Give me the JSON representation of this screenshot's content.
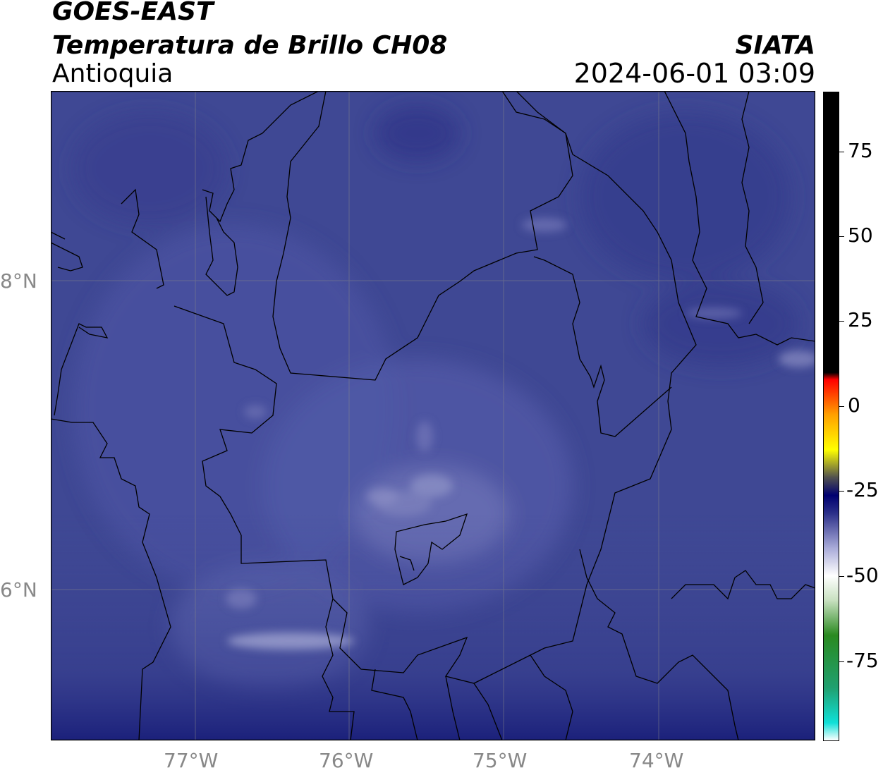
{
  "header": {
    "line1": "GOES-EAST",
    "line2": "Temperatura de Brillo CH08",
    "region": "Antioquia",
    "source": "SIATA",
    "datetime": "2024-06-01 03:09"
  },
  "map": {
    "lon_labels": [
      "77°W",
      "76°W",
      "75°W",
      "74°W"
    ],
    "lat_labels": [
      "8°N",
      "6°N"
    ],
    "background_color": "#3f4894",
    "cloud_highlight_color": "#8b8fc4",
    "boundary_color": "#000000",
    "gridline_color": "#888888"
  },
  "colorbar": {
    "tick_labels": [
      "75",
      "50",
      "25",
      "0",
      "-25",
      "-50",
      "-75"
    ],
    "range": [
      -95,
      90
    ],
    "stops": [
      {
        "value": -95,
        "color": "#ffffff"
      },
      {
        "value": -90,
        "color": "#10e0d8"
      },
      {
        "value": -80,
        "color": "#20a070"
      },
      {
        "value": -65,
        "color": "#2a8a20"
      },
      {
        "value": -55,
        "color": "#c8e0c0"
      },
      {
        "value": -48,
        "color": "#ffffff"
      },
      {
        "value": -40,
        "color": "#a8aad8"
      },
      {
        "value": -30,
        "color": "#2a2e88"
      },
      {
        "value": -25,
        "color": "#000070"
      },
      {
        "value": -20,
        "color": "#505050"
      },
      {
        "value": -12,
        "color": "#ffff00"
      },
      {
        "value": -2,
        "color": "#ffa000"
      },
      {
        "value": 8,
        "color": "#ff0000"
      },
      {
        "value": 10,
        "color": "#000000"
      },
      {
        "value": 90,
        "color": "#000000"
      }
    ]
  }
}
